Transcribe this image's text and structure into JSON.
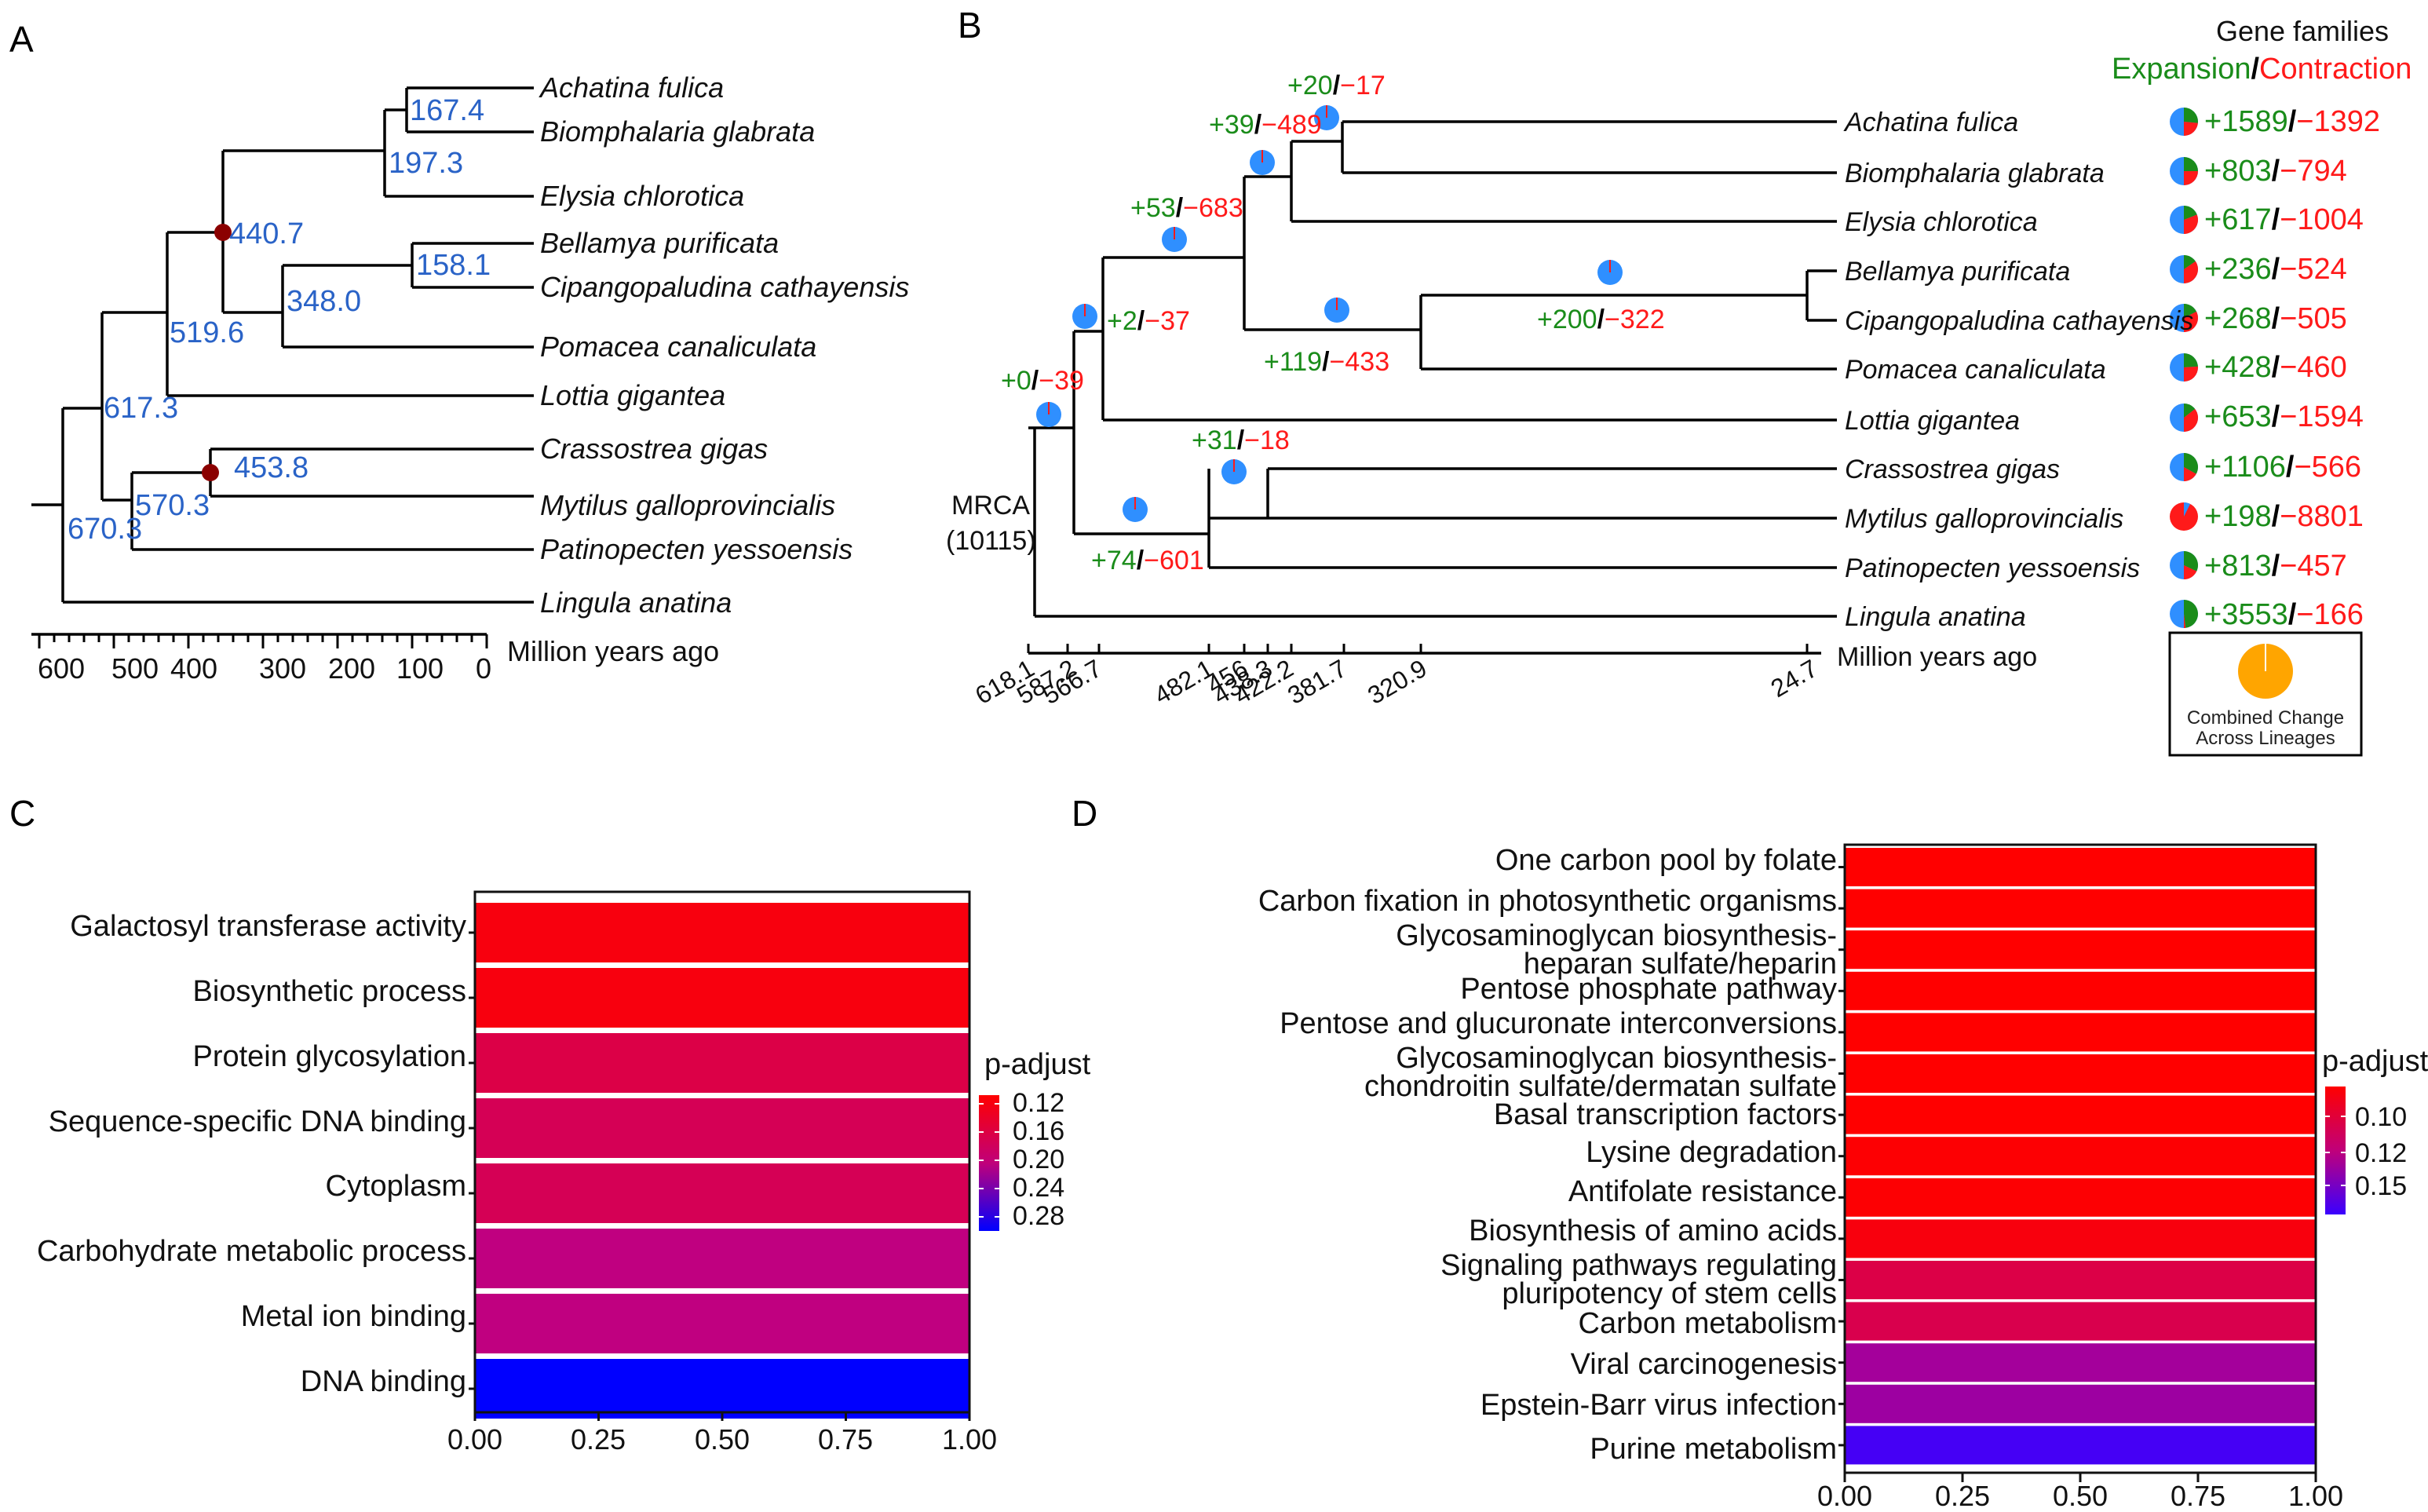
{
  "panels": {
    "a": "A",
    "b": "B",
    "c": "C",
    "d": "D"
  },
  "colors": {
    "node_blue": "#2a63c7",
    "green": "#1a8c1a",
    "red": "#ff1a1a",
    "pie_blue": "#2f8fff",
    "pie_orange": "#ffa500",
    "node_dark": "#8b0000"
  },
  "panel_a": {
    "species": [
      "Achatina fulica",
      "Biomphalaria glabrata",
      "Elysia chlorotica",
      "Bellamya purificata",
      "Cipangopaludina cathayensis",
      "Pomacea canaliculata",
      "Lottia gigantea",
      "Crassostrea gigas",
      "Mytilus galloprovincialis",
      "Patinopecten yessoensis",
      "Lingula anatina"
    ],
    "node_ages": [
      "167.4",
      "197.3",
      "440.7",
      "158.1",
      "348.0",
      "519.6",
      "617.3",
      "453.8",
      "570.3",
      "670.3"
    ],
    "axis_ticks": [
      "600",
      "500",
      "400",
      "300",
      "200",
      "100",
      "0"
    ],
    "axis_label": "Million years ago"
  },
  "panel_b": {
    "legend_title": "Gene families",
    "legend_expansion": "Expansion",
    "legend_slash": "/",
    "legend_contraction": "Contraction",
    "species": [
      "Achatina fulica",
      "Biomphalaria glabrata",
      "Elysia chlorotica",
      "Bellamya purificata",
      "Cipangopaludina cathayensis",
      "Pomacea canaliculata",
      "Lottia gigantea",
      "Crassostrea gigas",
      "Mytilus galloprovincialis",
      "Patinopecten yessoensis",
      "Lingula anatina"
    ],
    "tip_expansion": [
      "+1589",
      "+803",
      "+617",
      "+236",
      "+268",
      "+428",
      "+653",
      "+1106",
      "+198",
      "+813",
      "+3553"
    ],
    "tip_contraction": [
      "−1392",
      "−794",
      "−1004",
      "−524",
      "−505",
      "−460",
      "−1594",
      "−566",
      "−8801",
      "−457",
      "−166"
    ],
    "tip_pie_expansion_share": [
      0.53,
      0.5,
      0.38,
      0.31,
      0.35,
      0.48,
      0.29,
      0.66,
      0.02,
      0.64,
      0.96
    ],
    "node_expansion": [
      "+0",
      "+2",
      "+53",
      "+39",
      "+20",
      "+119",
      "+200",
      "+74",
      "+31"
    ],
    "node_contraction": [
      "−39",
      "−37",
      "−683",
      "−489",
      "−17",
      "−433",
      "−322",
      "−601",
      "−18"
    ],
    "root_label_1": "MRCA",
    "root_label_2": "(10115)",
    "axis_ticks": [
      "618.1",
      "587.2",
      "566.7",
      "482.1",
      "456",
      "438.3",
      "422.2",
      "381.7",
      "320.9",
      "24.7"
    ],
    "axis_tick_values": [
      618.1,
      587.2,
      566.7,
      482.1,
      456,
      438.3,
      422.2,
      381.7,
      320.9,
      24.7
    ],
    "axis_label": "Million years ago",
    "combined_label_1": "Combined Change",
    "combined_label_2": "Across Lineages"
  },
  "chart_data": [
    {
      "panel": "C",
      "type": "bar",
      "orientation": "horizontal",
      "categories": [
        "Galactosyl transferase activity",
        "Biosynthetic process",
        "Protein glycosylation",
        "Sequence-specific DNA binding",
        "Cytoplasm",
        "Carbohydrate metabolic process",
        "Metal ion binding",
        "DNA binding"
      ],
      "values": [
        1.0,
        1.0,
        1.0,
        1.0,
        1.0,
        1.0,
        1.0,
        1.0
      ],
      "p_adjust": [
        0.11,
        0.11,
        0.15,
        0.16,
        0.16,
        0.19,
        0.19,
        0.28
      ],
      "xlim": [
        0,
        1
      ],
      "x_ticks": [
        "0.00",
        "0.25",
        "0.50",
        "0.75",
        "1.00"
      ],
      "legend_title": "p-adjust",
      "legend_ticks": [
        "0.12",
        "0.16",
        "0.20",
        "0.24",
        "0.28"
      ],
      "legend_tick_values": [
        0.12,
        0.16,
        0.2,
        0.24,
        0.28
      ],
      "color_range": [
        0.1,
        0.28
      ]
    },
    {
      "panel": "D",
      "type": "bar",
      "orientation": "horizontal",
      "categories": [
        [
          "One carbon pool by folate"
        ],
        [
          "Carbon fixation in photosynthetic organisms"
        ],
        [
          "Glycosaminoglycan biosynthesis-",
          "heparan sulfate/heparin"
        ],
        [
          "Pentose phosphate pathway"
        ],
        [
          "Pentose and glucuronate interconversions"
        ],
        [
          "Glycosaminoglycan biosynthesis-",
          "chondroitin sulfate/dermatan sulfate"
        ],
        [
          "Basal transcription factors"
        ],
        [
          "Lysine degradation"
        ],
        [
          "Antifolate resistance"
        ],
        [
          "Biosynthesis of amino acids"
        ],
        [
          "Signaling pathways regulating",
          "pluripotency of stem cells"
        ],
        [
          "Carbon metabolism"
        ],
        [
          "Viral carcinogenesis"
        ],
        [
          "Epstein-Barr virus infection"
        ],
        [
          "Purine metabolism"
        ]
      ],
      "values": [
        1,
        1,
        1,
        1,
        1,
        1,
        1,
        1,
        1,
        1,
        1,
        1,
        1,
        1,
        1
      ],
      "p_adjust": [
        0.089,
        0.089,
        0.089,
        0.089,
        0.089,
        0.089,
        0.089,
        0.09,
        0.09,
        0.093,
        0.11,
        0.112,
        0.135,
        0.137,
        0.162
      ],
      "xlim": [
        0,
        1
      ],
      "x_ticks": [
        "0.00",
        "0.25",
        "0.50",
        "0.75",
        "1.00"
      ],
      "legend_title": "p-adjust",
      "legend_ticks": [
        "0.10",
        "0.12",
        "0.15"
      ],
      "legend_tick_values": [
        0.1,
        0.12,
        0.15
      ],
      "color_range": [
        0.089,
        0.165
      ]
    }
  ]
}
